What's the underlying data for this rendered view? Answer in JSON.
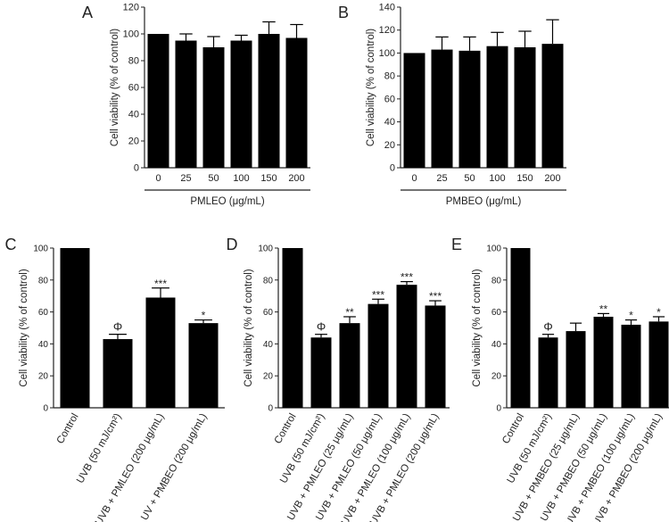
{
  "chart_data": [
    {
      "type": "bar",
      "panel": "A",
      "categories": [
        "0",
        "25",
        "50",
        "100",
        "150",
        "200"
      ],
      "values": [
        100,
        95,
        90,
        95,
        100,
        97
      ],
      "errors": [
        0,
        5,
        8,
        4,
        9,
        10
      ],
      "marks": [
        "",
        "",
        "",
        "",
        "",
        ""
      ],
      "xlabel": "PMLEO (μg/mL)",
      "ylabel": "Cell viability (% of control)",
      "ylim": [
        0,
        120
      ],
      "yticks": [
        0,
        20,
        40,
        60,
        80,
        100,
        120
      ]
    },
    {
      "type": "bar",
      "panel": "B",
      "categories": [
        "0",
        "25",
        "50",
        "100",
        "150",
        "200"
      ],
      "values": [
        100,
        103,
        102,
        106,
        105,
        108
      ],
      "errors": [
        0,
        11,
        12,
        12,
        14,
        21
      ],
      "marks": [
        "",
        "",
        "",
        "",
        "",
        ""
      ],
      "xlabel": "PMBEO (μg/mL)",
      "ylabel": "Cell viability (% of control)",
      "ylim": [
        0,
        140
      ],
      "yticks": [
        0,
        20,
        40,
        60,
        80,
        100,
        120,
        140
      ]
    },
    {
      "type": "bar",
      "panel": "C",
      "categories": [
        "Control",
        "UVB (50 mJ/cm²)",
        "UVB + PMLEO (200 μg/mL)",
        "UV + PMBEO (200 μg/mL)"
      ],
      "values": [
        100,
        43,
        69,
        53
      ],
      "errors": [
        0,
        3,
        6,
        2
      ],
      "marks": [
        "",
        "Φ",
        "***",
        "*"
      ],
      "xlabel": "",
      "ylabel": "Cell viability (% of control)",
      "ylim": [
        0,
        100
      ],
      "yticks": [
        0,
        20,
        40,
        60,
        80,
        100
      ]
    },
    {
      "type": "bar",
      "panel": "D",
      "categories": [
        "Control",
        "UVB (50 mJ/cm²)",
        "UVB + PMLEO (25 μg/mL)",
        "UVB + PMLEO (50 μg/mL)",
        "UVB + PMLEO (100 μg/mL)",
        "UVB + PMLEO (200 μg/mL)"
      ],
      "values": [
        100,
        44,
        53,
        65,
        77,
        64
      ],
      "errors": [
        0,
        2,
        4,
        3,
        2,
        3
      ],
      "marks": [
        "",
        "Φ",
        "**",
        "***",
        "***",
        "***"
      ],
      "xlabel": "",
      "ylabel": "Cell viability (% of control)",
      "ylim": [
        0,
        100
      ],
      "yticks": [
        0,
        20,
        40,
        60,
        80,
        100
      ]
    },
    {
      "type": "bar",
      "panel": "E",
      "categories": [
        "Control",
        "UVB (50 mJ/cm²)",
        "UVB + PMBEO (25 μg/mL)",
        "UVB + PMBEO (50 μg/mL)",
        "UVB + PMBEO (100 μg/mL)",
        "UVB + PMBEO (200 μg/mL)"
      ],
      "values": [
        100,
        44,
        48,
        57,
        52,
        54
      ],
      "errors": [
        0,
        2,
        5,
        2,
        3,
        3
      ],
      "marks": [
        "",
        "Φ",
        "",
        "**",
        "*",
        "*"
      ],
      "xlabel": "",
      "ylabel": "Cell viability (% of control)",
      "ylim": [
        0,
        100
      ],
      "yticks": [
        0,
        20,
        40,
        60,
        80,
        100
      ]
    }
  ],
  "colors": {
    "bar": "#000000",
    "axis": "#222222"
  }
}
